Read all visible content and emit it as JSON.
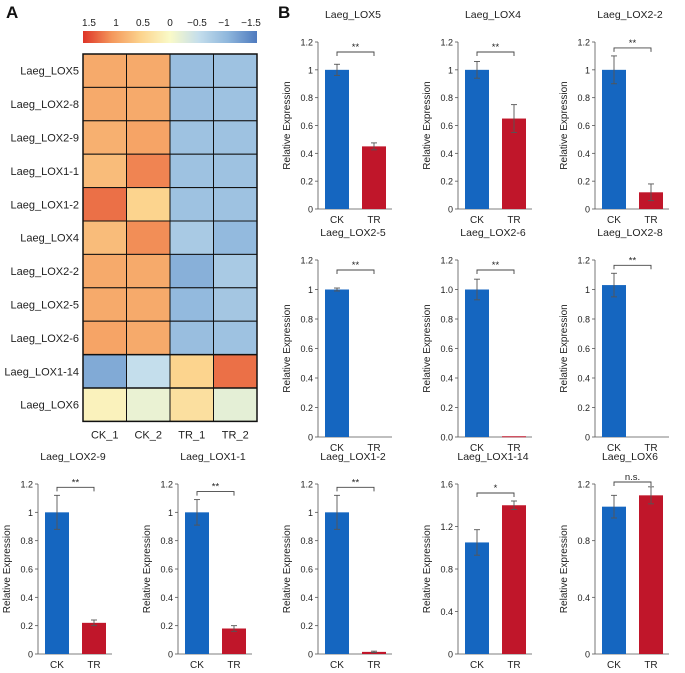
{
  "panel_a_label": "A",
  "panel_b_label": "B",
  "colors": {
    "ck": "#1566c0",
    "tr": "#c0162a",
    "axis": "#555555",
    "grid_border": "#111111"
  },
  "chart_data": [
    {
      "type": "heatmap",
      "panel": "A",
      "rows": [
        "Laeg_LOX5",
        "Laeg_LOX2-8",
        "Laeg_LOX2-9",
        "Laeg_LOX1-1",
        "Laeg_LOX1-2",
        "Laeg_LOX4",
        "Laeg_LOX2-2",
        "Laeg_LOX2-5",
        "Laeg_LOX2-6",
        "Laeg_LOX1-14",
        "Laeg_LOX6"
      ],
      "columns": [
        "CK_1",
        "CK_2",
        "TR_1",
        "TR_2"
      ],
      "values": [
        [
          0.85,
          0.85,
          -0.9,
          -0.85
        ],
        [
          0.85,
          0.85,
          -0.9,
          -0.85
        ],
        [
          0.8,
          0.9,
          -0.85,
          -0.85
        ],
        [
          0.7,
          1.1,
          -0.85,
          -0.85
        ],
        [
          1.2,
          0.5,
          -0.85,
          -0.85
        ],
        [
          0.7,
          1.05,
          -0.75,
          -0.95
        ],
        [
          0.85,
          0.85,
          -1.05,
          -0.75
        ],
        [
          0.85,
          0.85,
          -0.95,
          -0.8
        ],
        [
          0.9,
          0.85,
          -0.9,
          -0.85
        ],
        [
          -1.1,
          -0.5,
          0.5,
          1.2
        ],
        [
          0.1,
          -0.15,
          0.35,
          -0.2
        ]
      ],
      "color_scale": {
        "min": -1.5,
        "max": 1.5,
        "ticks": [
          "1.5",
          "1",
          "0.5",
          "0",
          "−0.5",
          "−1",
          "−1.5"
        ]
      }
    },
    {
      "type": "bar",
      "title": "Laeg_LOX5",
      "ylabel": "Relative Expression",
      "categories": [
        "CK",
        "TR"
      ],
      "values": [
        1.0,
        0.45
      ],
      "errors": [
        0.04,
        0.025
      ],
      "ylim": [
        0,
        1.2
      ],
      "yticks": [
        "0",
        "0.2",
        "0.4",
        "0.6",
        "0.8",
        "1",
        "1.2"
      ],
      "significance": "**"
    },
    {
      "type": "bar",
      "title": "Laeg_LOX4",
      "ylabel": "Relative Expression",
      "categories": [
        "CK",
        "TR"
      ],
      "values": [
        1.0,
        0.65
      ],
      "errors": [
        0.06,
        0.1
      ],
      "ylim": [
        0,
        1.2
      ],
      "yticks": [
        "0",
        "0.2",
        "0.4",
        "0.6",
        "0.8",
        "1",
        "1.2"
      ],
      "significance": "**"
    },
    {
      "type": "bar",
      "title": "Laeg_LOX2-2",
      "ylabel": "Relative Expression",
      "categories": [
        "CK",
        "TR"
      ],
      "values": [
        1.0,
        0.12
      ],
      "errors": [
        0.1,
        0.06
      ],
      "ylim": [
        0,
        1.2
      ],
      "yticks": [
        "0",
        "0.2",
        "0.4",
        "0.6",
        "0.8",
        "1",
        "1.2"
      ],
      "significance": "**"
    },
    {
      "type": "bar",
      "title": "Laeg_LOX2-5",
      "ylabel": "Relative Expression",
      "categories": [
        "CK",
        "TR"
      ],
      "values": [
        1.0,
        0.0
      ],
      "errors": [
        0.01,
        0.0
      ],
      "ylim": [
        0,
        1.2
      ],
      "yticks": [
        "0",
        "0.2",
        "0.4",
        "0.6",
        "0.8",
        "1",
        "1.2"
      ],
      "significance": "**"
    },
    {
      "type": "bar",
      "title": "Laeg_LOX2-6",
      "ylabel": "Relative Expression",
      "categories": [
        "CK",
        "TR"
      ],
      "values": [
        1.0,
        0.005
      ],
      "errors": [
        0.07,
        0.0
      ],
      "ylim": [
        0,
        1.2
      ],
      "yticks": [
        "0.0",
        "0.2",
        "0.4",
        "0.6",
        "0.8",
        "1.0",
        "1.2"
      ],
      "significance": "**"
    },
    {
      "type": "bar",
      "title": "Laeg_LOX2-8",
      "ylabel": "Relative Expression",
      "categories": [
        "CK",
        "TR"
      ],
      "values": [
        1.03,
        0.0
      ],
      "errors": [
        0.08,
        0.0
      ],
      "ylim": [
        0,
        1.2
      ],
      "yticks": [
        "0",
        "0.2",
        "0.4",
        "0.6",
        "0.8",
        "1",
        "1.2"
      ],
      "significance": "**"
    },
    {
      "type": "bar",
      "title": "Laeg_LOX2-9",
      "ylabel": "Relative Expression",
      "categories": [
        "CK",
        "TR"
      ],
      "values": [
        1.0,
        0.22
      ],
      "errors": [
        0.12,
        0.02
      ],
      "ylim": [
        0,
        1.2
      ],
      "yticks": [
        "0",
        "0.2",
        "0.4",
        "0.6",
        "0.8",
        "1",
        "1.2"
      ],
      "significance": "**"
    },
    {
      "type": "bar",
      "title": "Laeg_LOX1-1",
      "ylabel": "Relative Expression",
      "categories": [
        "CK",
        "TR"
      ],
      "values": [
        1.0,
        0.18
      ],
      "errors": [
        0.09,
        0.02
      ],
      "ylim": [
        0,
        1.2
      ],
      "yticks": [
        "0",
        "0.2",
        "0.4",
        "0.6",
        "0.8",
        "1",
        "1.2"
      ],
      "significance": "**"
    },
    {
      "type": "bar",
      "title": "Laeg_LOX1-2",
      "ylabel": "Relative Expression",
      "categories": [
        "CK",
        "TR"
      ],
      "values": [
        1.0,
        0.015
      ],
      "errors": [
        0.12,
        0.005
      ],
      "ylim": [
        0,
        1.2
      ],
      "yticks": [
        "0",
        "0.2",
        "0.4",
        "0.6",
        "0.8",
        "1",
        "1.2"
      ],
      "significance": "**"
    },
    {
      "type": "bar",
      "title": "Laeg_LOX1-14",
      "ylabel": "Relative Expression",
      "categories": [
        "CK",
        "TR"
      ],
      "values": [
        1.05,
        1.4
      ],
      "errors": [
        0.12,
        0.04
      ],
      "ylim": [
        0,
        1.6
      ],
      "yticks": [
        "0",
        "0.4",
        "0.8",
        "1.2",
        "1.6"
      ],
      "significance": "*"
    },
    {
      "type": "bar",
      "title": "Laeg_LOX6",
      "ylabel": "Relative Expression",
      "categories": [
        "CK",
        "TR"
      ],
      "values": [
        1.04,
        1.12
      ],
      "errors": [
        0.08,
        0.06
      ],
      "ylim": [
        0,
        1.2
      ],
      "yticks": [
        "0",
        "0.4",
        "0.8",
        "1.2"
      ],
      "significance": "n.s."
    }
  ]
}
